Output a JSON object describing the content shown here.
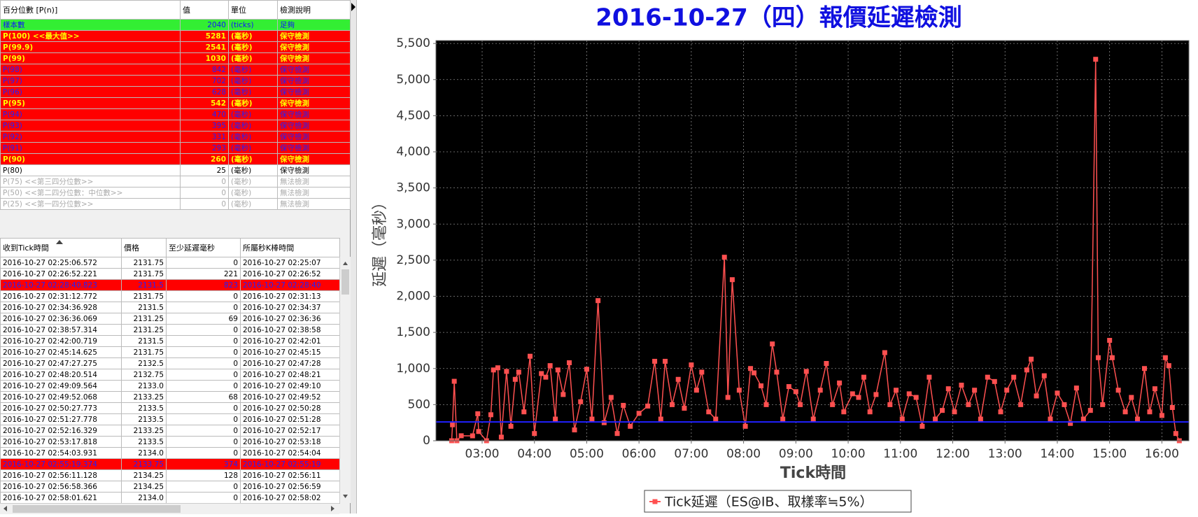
{
  "top_table": {
    "header": [
      "百分位數 [P(n)]",
      "值",
      "單位",
      "檢測說明"
    ],
    "rows": [
      {
        "style": "green",
        "cells": [
          "樣本數",
          "2040",
          "(ticks)",
          "足夠"
        ]
      },
      {
        "style": "red-bold",
        "cells": [
          "P(100)  <<最大值>>",
          "5281",
          "(毫秒)",
          "保守檢測"
        ]
      },
      {
        "style": "red-bold",
        "cells": [
          "P(99.9)",
          "2541",
          "(毫秒)",
          "保守檢測"
        ]
      },
      {
        "style": "red-bold",
        "cells": [
          "P(99)",
          "1030",
          "(毫秒)",
          "保守檢測"
        ]
      },
      {
        "style": "red",
        "cells": [
          "P(98)",
          "842",
          "(毫秒)",
          "保守檢測"
        ]
      },
      {
        "style": "red",
        "cells": [
          "P(97)",
          "702",
          "(毫秒)",
          "保守檢測"
        ]
      },
      {
        "style": "red",
        "cells": [
          "P(96)",
          "628",
          "(毫秒)",
          "保守檢測"
        ]
      },
      {
        "style": "red-bold",
        "cells": [
          "P(95)",
          "542",
          "(毫秒)",
          "保守檢測"
        ]
      },
      {
        "style": "red",
        "cells": [
          "P(94)",
          "470",
          "(毫秒)",
          "保守檢測"
        ]
      },
      {
        "style": "red",
        "cells": [
          "P(93)",
          "395",
          "(毫秒)",
          "保守檢測"
        ]
      },
      {
        "style": "red",
        "cells": [
          "P(92)",
          "331",
          "(毫秒)",
          "保守檢測"
        ]
      },
      {
        "style": "red",
        "cells": [
          "P(91)",
          "293",
          "(毫秒)",
          "保守檢測"
        ]
      },
      {
        "style": "red-bold",
        "cells": [
          "P(90)",
          "260",
          "(毫秒)",
          "保守檢測"
        ]
      },
      {
        "style": "normal",
        "cells": [
          "P(80)",
          "25",
          "(毫秒)",
          "保守檢測"
        ]
      },
      {
        "style": "disabled",
        "cells": [
          "P(75)  <<第三四分位數>>",
          "0",
          "(毫秒)",
          "無法檢測"
        ]
      },
      {
        "style": "disabled",
        "cells": [
          "P(50)  <<第二四分位數：中位數>>",
          "0",
          "(毫秒)",
          "無法檢測"
        ]
      },
      {
        "style": "disabled",
        "cells": [
          "P(25)  <<第一四分位數>>",
          "0",
          "(毫秒)",
          "無法檢測"
        ]
      }
    ]
  },
  "bottom_table": {
    "header": [
      "收到Tick時間",
      "價格",
      "至少延遲毫秒",
      "所屬秒K棒時間"
    ],
    "rows": [
      {
        "style": "normal",
        "cells": [
          "2016-10-27 02:25:06.572",
          "2131.75",
          "0",
          "2016-10-27 02:25:07"
        ]
      },
      {
        "style": "normal",
        "cells": [
          "2016-10-27 02:26:52.221",
          "2131.75",
          "221",
          "2016-10-27 02:26:52"
        ]
      },
      {
        "style": "red",
        "cells": [
          "2016-10-27 02:28:40.823",
          "2131.5",
          "823",
          "2016-10-27 02:28:40"
        ]
      },
      {
        "style": "normal",
        "cells": [
          "2016-10-27 02:31:12.772",
          "2131.75",
          "0",
          "2016-10-27 02:31:13"
        ]
      },
      {
        "style": "normal",
        "cells": [
          "2016-10-27 02:34:36.928",
          "2131.5",
          "0",
          "2016-10-27 02:34:37"
        ]
      },
      {
        "style": "normal",
        "cells": [
          "2016-10-27 02:36:36.069",
          "2131.25",
          "69",
          "2016-10-27 02:36:36"
        ]
      },
      {
        "style": "normal",
        "cells": [
          "2016-10-27 02:38:57.314",
          "2131.25",
          "0",
          "2016-10-27 02:38:58"
        ]
      },
      {
        "style": "normal",
        "cells": [
          "2016-10-27 02:42:00.719",
          "2131.5",
          "0",
          "2016-10-27 02:42:01"
        ]
      },
      {
        "style": "normal",
        "cells": [
          "2016-10-27 02:45:14.625",
          "2131.75",
          "0",
          "2016-10-27 02:45:15"
        ]
      },
      {
        "style": "normal",
        "cells": [
          "2016-10-27 02:47:27.275",
          "2132.5",
          "0",
          "2016-10-27 02:47:28"
        ]
      },
      {
        "style": "normal",
        "cells": [
          "2016-10-27 02:48:20.514",
          "2132.75",
          "0",
          "2016-10-27 02:48:21"
        ]
      },
      {
        "style": "normal",
        "cells": [
          "2016-10-27 02:49:09.564",
          "2133.0",
          "0",
          "2016-10-27 02:49:10"
        ]
      },
      {
        "style": "normal",
        "cells": [
          "2016-10-27 02:49:52.068",
          "2133.25",
          "68",
          "2016-10-27 02:49:52"
        ]
      },
      {
        "style": "normal",
        "cells": [
          "2016-10-27 02:50:27.773",
          "2133.5",
          "0",
          "2016-10-27 02:50:28"
        ]
      },
      {
        "style": "normal",
        "cells": [
          "2016-10-27 02:51:27.778",
          "2133.5",
          "0",
          "2016-10-27 02:51:28"
        ]
      },
      {
        "style": "normal",
        "cells": [
          "2016-10-27 02:52:16.329",
          "2133.25",
          "0",
          "2016-10-27 02:52:17"
        ]
      },
      {
        "style": "normal",
        "cells": [
          "2016-10-27 02:53:17.818",
          "2133.5",
          "0",
          "2016-10-27 02:53:18"
        ]
      },
      {
        "style": "normal",
        "cells": [
          "2016-10-27 02:54:03.931",
          "2134.0",
          "0",
          "2016-10-27 02:54:04"
        ]
      },
      {
        "style": "red",
        "cells": [
          "2016-10-27 02:55:19.374",
          "2133.75",
          "374",
          "2016-10-27 02:55:19"
        ]
      },
      {
        "style": "normal",
        "cells": [
          "2016-10-27 02:56:11.128",
          "2134.25",
          "128",
          "2016-10-27 02:56:11"
        ]
      },
      {
        "style": "normal",
        "cells": [
          "2016-10-27 02:56:58.366",
          "2134.25",
          "0",
          "2016-10-27 02:56:59"
        ]
      },
      {
        "style": "normal",
        "cells": [
          "2016-10-27 02:58:01.621",
          "2134.0",
          "0",
          "2016-10-27 02:58:02"
        ]
      }
    ]
  },
  "chart_data": {
    "type": "line",
    "title": "2016-10-27（四）報價延遲檢測",
    "x_label": "Tick時間",
    "y_label": "延遲（毫秒）",
    "xlim": [
      "02:07",
      "16:31"
    ],
    "xticks": [
      "03:00",
      "04:00",
      "05:00",
      "06:00",
      "07:00",
      "08:00",
      "09:00",
      "10:00",
      "11:00",
      "12:00",
      "13:00",
      "14:00",
      "15:00",
      "16:00"
    ],
    "ylim": [
      0,
      5540
    ],
    "yticks": [
      0,
      500,
      {
        "value": 1000,
        "label": "1,000"
      },
      {
        "value": 1500,
        "label": "1,500"
      },
      {
        "value": 2000,
        "label": "2,000"
      },
      {
        "value": 2500,
        "label": "2,500"
      },
      {
        "value": 3000,
        "label": "3,000"
      },
      {
        "value": 3500,
        "label": "3,500"
      },
      {
        "value": 4000,
        "label": "4,000"
      },
      {
        "value": 4500,
        "label": "4,500"
      },
      {
        "value": 5000,
        "label": "5,000"
      },
      {
        "value": 5500,
        "label": "5,500"
      }
    ],
    "grid": true,
    "background": "#000000",
    "legend": "bottom",
    "reference_line": {
      "value": 260,
      "color": "#2020ff"
    },
    "series": [
      {
        "name": "Tick延遲（ES@IB、取樣率≒5%）",
        "color": "#ff5050",
        "x": [
          "02:25",
          "02:26",
          "02:28",
          "02:31",
          "02:36",
          "02:49",
          "02:55",
          "02:56",
          "03:05",
          "03:10",
          "03:13",
          "03:18",
          "03:22",
          "03:28",
          "03:33",
          "03:38",
          "03:42",
          "03:48",
          "03:55",
          "04:00",
          "04:08",
          "04:13",
          "04:18",
          "04:24",
          "04:27",
          "04:33",
          "04:40",
          "04:46",
          "04:53",
          "05:00",
          "05:06",
          "05:13",
          "05:20",
          "05:28",
          "05:35",
          "05:42",
          "05:50",
          "06:00",
          "06:10",
          "06:18",
          "06:25",
          "06:30",
          "06:38",
          "06:45",
          "06:52",
          "07:00",
          "07:06",
          "07:12",
          "07:20",
          "07:28",
          "07:38",
          "07:42",
          "07:47",
          "07:55",
          "08:02",
          "08:08",
          "08:12",
          "08:20",
          "08:26",
          "08:33",
          "08:38",
          "08:45",
          "08:52",
          "09:00",
          "09:05",
          "09:12",
          "09:20",
          "09:28",
          "09:35",
          "09:42",
          "09:50",
          "09:55",
          "10:05",
          "10:12",
          "10:18",
          "10:25",
          "10:32",
          "10:42",
          "10:48",
          "10:55",
          "11:02",
          "11:10",
          "11:18",
          "11:25",
          "11:33",
          "11:40",
          "11:48",
          "11:55",
          "12:02",
          "12:10",
          "12:18",
          "12:25",
          "12:32",
          "12:40",
          "12:48",
          "12:55",
          "13:02",
          "13:10",
          "13:18",
          "13:25",
          "13:30",
          "13:36",
          "13:45",
          "13:52",
          "14:00",
          "14:08",
          "14:15",
          "14:22",
          "14:30",
          "14:38",
          "14:44",
          "14:47",
          "14:52",
          "15:00",
          "15:03",
          "15:10",
          "15:18",
          "15:25",
          "15:32",
          "15:40",
          "15:46",
          "15:52",
          "16:00",
          "16:04",
          "16:08",
          "16:12",
          "16:16",
          "16:20"
        ],
        "values": [
          0,
          221,
          823,
          0,
          69,
          68,
          374,
          128,
          0,
          360,
          980,
          1010,
          50,
          960,
          200,
          850,
          950,
          400,
          1170,
          100,
          930,
          880,
          1040,
          300,
          980,
          640,
          1080,
          150,
          540,
          990,
          300,
          1940,
          250,
          600,
          100,
          490,
          200,
          380,
          480,
          1100,
          300,
          1100,
          500,
          850,
          450,
          1050,
          700,
          950,
          400,
          300,
          2541,
          600,
          2230,
          700,
          200,
          1000,
          940,
          760,
          500,
          1340,
          950,
          300,
          750,
          680,
          500,
          960,
          300,
          700,
          1070,
          500,
          800,
          400,
          650,
          600,
          880,
          400,
          640,
          1220,
          500,
          700,
          300,
          650,
          600,
          200,
          880,
          300,
          420,
          720,
          400,
          770,
          500,
          700,
          300,
          880,
          820,
          400,
          700,
          880,
          500,
          980,
          1130,
          620,
          900,
          300,
          660,
          500,
          240,
          730,
          300,
          420,
          5281,
          1150,
          500,
          1390,
          1150,
          700,
          400,
          600,
          300,
          1000,
          400,
          720,
          350,
          1150,
          1040,
          460,
          100,
          0
        ]
      }
    ]
  }
}
